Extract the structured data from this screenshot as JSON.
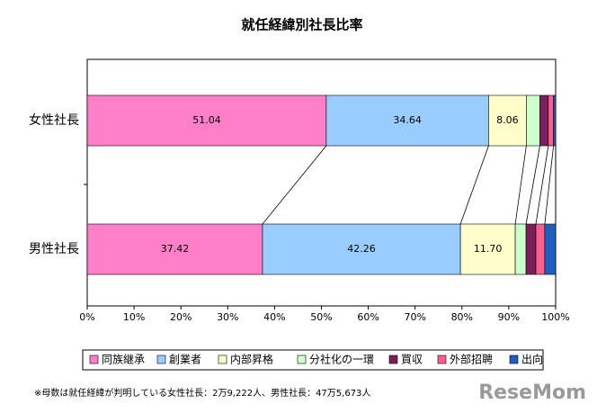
{
  "chart_data": {
    "type": "stacked-bar-horizontal",
    "title": "就任経緯別社長比率",
    "categories": [
      "女性社長",
      "男性社長"
    ],
    "series": [
      {
        "name": "同族継承",
        "color": "#ff80c8",
        "values": [
          51.04,
          37.42
        ],
        "value_labels": [
          "51.04",
          "37.42"
        ]
      },
      {
        "name": "創業者",
        "color": "#99ccff",
        "values": [
          34.64,
          42.26
        ],
        "value_labels": [
          "34.64",
          "42.26"
        ]
      },
      {
        "name": "内部昇格",
        "color": "#ffffcc",
        "values": [
          8.06,
          11.7
        ],
        "value_labels": [
          "8.06",
          "11.70"
        ]
      },
      {
        "name": "分社化の一環",
        "color": "#ccffcc",
        "values": [
          2.9,
          2.3
        ]
      },
      {
        "name": "買収",
        "color": "#7a1f5c",
        "values": [
          1.8,
          2.1
        ]
      },
      {
        "name": "外部招聘",
        "color": "#ff5f8f",
        "values": [
          1.1,
          1.9
        ]
      },
      {
        "name": "出向",
        "color": "#1f5fbf",
        "values": [
          0.46,
          2.32
        ]
      }
    ],
    "xlim": [
      0,
      100
    ],
    "xticks": [
      {
        "value": 0,
        "label": "0%"
      },
      {
        "value": 10,
        "label": "10%"
      },
      {
        "value": 20,
        "label": "20%"
      },
      {
        "value": 30,
        "label": "30%"
      },
      {
        "value": 40,
        "label": "40%"
      },
      {
        "value": 50,
        "label": "50%"
      },
      {
        "value": 60,
        "label": "60%"
      },
      {
        "value": 70,
        "label": "70%"
      },
      {
        "value": 80,
        "label": "80%"
      },
      {
        "value": 90,
        "label": "90%"
      },
      {
        "value": 100,
        "label": "100%"
      }
    ],
    "legend": "bottom",
    "note": "※母数は就任経緯が判明している女性社長：2万9,222人、男性社長：47万5,673人",
    "logo": "ReseMom"
  }
}
